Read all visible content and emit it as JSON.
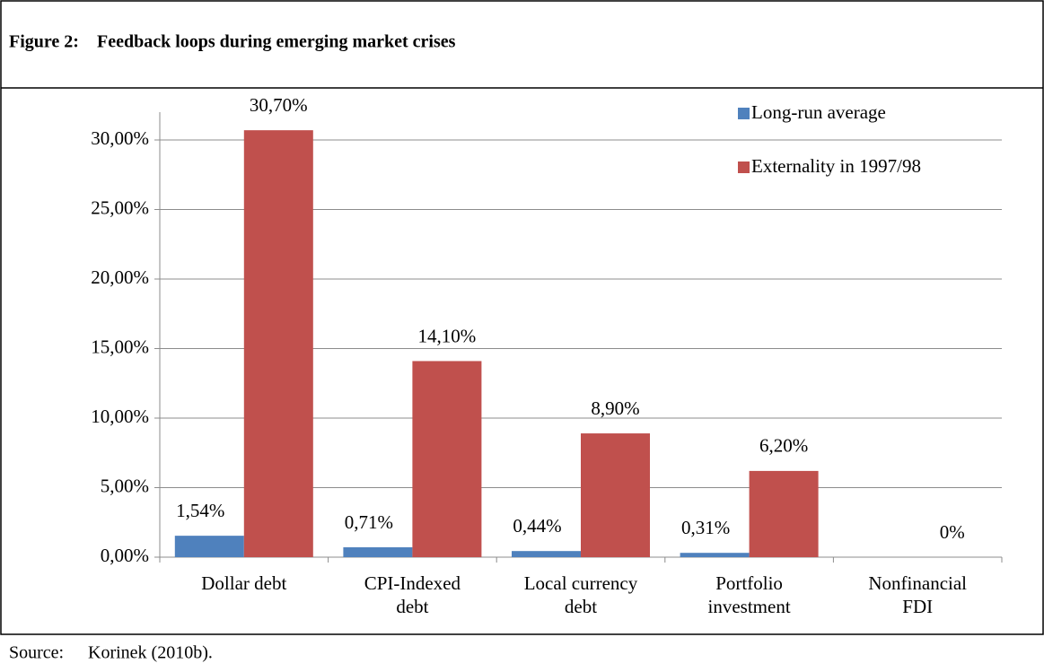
{
  "figure_label": "Figure 2:",
  "source_label": "Source:",
  "source": "Korinek (2010b).",
  "chart_data": {
    "type": "bar",
    "title": "Feedback loops during emerging market crises",
    "categories": [
      "Dollar debt",
      "CPI-Indexed\ndebt",
      "Local currency\ndebt",
      "Portfolio\ninvestment",
      "Nonfinancial\nFDI"
    ],
    "series": [
      {
        "name": "Long-run average",
        "color": "#4f81bd",
        "values": [
          1.54,
          0.71,
          0.44,
          0.31,
          0
        ],
        "value_labels": [
          "1,54%",
          "0,71%",
          "0,44%",
          "0,31%",
          null
        ]
      },
      {
        "name": "Externality in 1997/98",
        "color": "#c0504d",
        "values": [
          30.7,
          14.1,
          8.9,
          6.2,
          0
        ],
        "value_labels": [
          "30,70%",
          "14,10%",
          "8,90%",
          "6,20%",
          "0%"
        ]
      }
    ],
    "ylim": [
      0,
      32
    ],
    "yticks": [
      {
        "value": 0,
        "label": "0,00%"
      },
      {
        "value": 5,
        "label": "5,00%"
      },
      {
        "value": 10,
        "label": "10,00%"
      },
      {
        "value": 15,
        "label": "15,00%"
      },
      {
        "value": 20,
        "label": "20,00%"
      },
      {
        "value": 25,
        "label": "25,00%"
      },
      {
        "value": 30,
        "label": "30,00%"
      }
    ],
    "grid": true,
    "legend": "top-right"
  }
}
